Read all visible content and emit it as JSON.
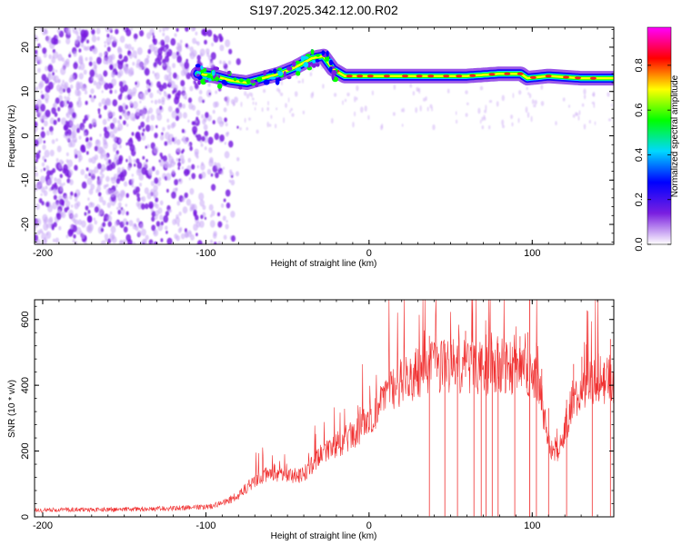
{
  "figure": {
    "title": "S197.2025.342.12.00.R02"
  },
  "colorbar": {
    "label": "Normalized spectral amplitude",
    "ticks": [
      "0.0",
      "0.2",
      "0.4",
      "0.6",
      "0.8"
    ],
    "tick_values": [
      0.0,
      0.2,
      0.4,
      0.6,
      0.8
    ],
    "range": [
      0,
      0.97
    ],
    "colors": [
      "#ffffff",
      "#7a1fe0",
      "#0000ff",
      "#00d8ff",
      "#00ff00",
      "#ffff00",
      "#ff0000",
      "#ff00ff"
    ]
  },
  "chart_data": [
    {
      "type": "heatmap",
      "name": "spectrogram",
      "title": "",
      "xlabel": "Height of straight line (km)",
      "ylabel": "Frequency (Hz)",
      "xlim": [
        -205,
        150
      ],
      "ylim": [
        -24.5,
        24.5
      ],
      "xticks": [
        -200,
        -100,
        0,
        100
      ],
      "yticks": [
        -20,
        -10,
        0,
        10,
        20
      ],
      "xtick_labels": [
        "-200",
        "-100",
        "0",
        "100"
      ],
      "ytick_labels": [
        "-20",
        "-10",
        "0",
        "10",
        "20"
      ],
      "ridge": {
        "x": [
          -105,
          -95,
          -85,
          -75,
          -65,
          -55,
          -45,
          -35,
          -28,
          -22,
          -15,
          0,
          20,
          40,
          60,
          80,
          93,
          97,
          110,
          130,
          150
        ],
        "y": [
          14,
          13.5,
          12.5,
          12,
          13,
          14,
          15.5,
          17.5,
          18,
          15,
          13.5,
          13.5,
          13.5,
          13.5,
          13.5,
          14,
          14,
          13,
          13.5,
          13,
          13
        ]
      },
      "noise_region_x": [
        -205,
        -90
      ],
      "colors": {
        "noise": "#7a1fe0",
        "noise_light": "#c9a8f5"
      }
    },
    {
      "type": "line",
      "name": "snr",
      "title": "",
      "xlabel": "Height of straight line (km)",
      "ylabel": "SNR (10 * v/v)",
      "xlim": [
        -205,
        150
      ],
      "ylim": [
        0,
        660
      ],
      "xticks": [
        -200,
        -100,
        0,
        100
      ],
      "yticks": [
        0,
        200,
        400,
        600
      ],
      "xtick_labels": [
        "-200",
        "-100",
        "0",
        "100"
      ],
      "ytick_labels": [
        "0",
        "200",
        "400",
        "600"
      ],
      "series": [
        {
          "name": "SNR",
          "color": "#f03030",
          "x": [
            -205,
            -180,
            -160,
            -140,
            -120,
            -100,
            -90,
            -80,
            -70,
            -60,
            -50,
            -40,
            -30,
            -20,
            -10,
            0,
            10,
            20,
            30,
            40,
            50,
            60,
            70,
            80,
            90,
            100,
            105,
            110,
            113,
            118,
            125,
            135,
            150
          ],
          "y": [
            20,
            22,
            22,
            24,
            26,
            30,
            40,
            65,
            110,
            140,
            120,
            130,
            190,
            220,
            250,
            300,
            360,
            410,
            440,
            455,
            460,
            455,
            450,
            450,
            450,
            440,
            380,
            230,
            180,
            230,
            360,
            410,
            420
          ]
        }
      ]
    }
  ]
}
